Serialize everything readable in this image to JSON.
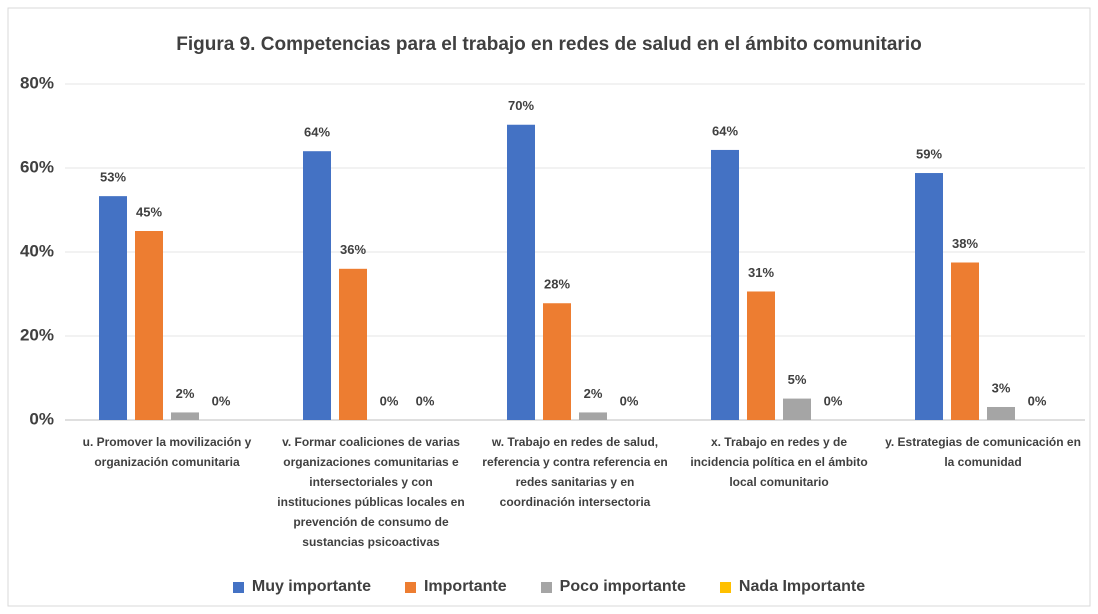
{
  "chart_data": {
    "type": "bar",
    "title": "Figura 9. Competencias para el trabajo en redes de salud en el ámbito comunitario",
    "categories": [
      "u. Promover la movilización y organización comunitaria",
      "v. Formar coaliciones de varias organizaciones comunitarias e intersectoriales y con instituciones públicas locales en prevención de consumo de sustancias psicoactivas",
      "w. Trabajo en redes de salud, referencia y contra referencia en redes sanitarias y en coordinación intersectoria",
      "x. Trabajo en redes y de incidencia política en el ámbito local comunitario",
      "y. Estrategias de comunicación en la comunidad"
    ],
    "series": [
      {
        "name": "Muy importante",
        "color": "#4472c4",
        "values": [
          53.3,
          64,
          70.3,
          64.3,
          58.8
        ],
        "value_labels": [
          "53%",
          "64%",
          "70%",
          "64%",
          "59%"
        ]
      },
      {
        "name": "Importante",
        "color": "#ed7d31",
        "values": [
          45,
          36,
          27.8,
          30.6,
          37.5
        ],
        "value_labels": [
          "45%",
          "36%",
          "28%",
          "31%",
          "38%"
        ]
      },
      {
        "name": "Poco importante",
        "color": "#a5a5a5",
        "values": [
          1.8,
          0,
          1.8,
          5.1,
          3.1
        ],
        "value_labels": [
          "2%",
          "0%",
          "2%",
          "5%",
          "3%"
        ]
      },
      {
        "name": "Nada Importante",
        "color": "#ffc000",
        "values": [
          0,
          0,
          0,
          0,
          0
        ],
        "value_labels": [
          "0%",
          "0%",
          "0%",
          "0%",
          "0%"
        ]
      }
    ],
    "ylim": [
      0,
      80
    ],
    "yticks": [
      {
        "value": 0,
        "label": "0%"
      },
      {
        "value": 20,
        "label": "20%"
      },
      {
        "value": 40,
        "label": "40%"
      },
      {
        "value": 60,
        "label": "60%"
      },
      {
        "value": 80,
        "label": "80%"
      }
    ],
    "grid": true,
    "legend": "bottom"
  }
}
